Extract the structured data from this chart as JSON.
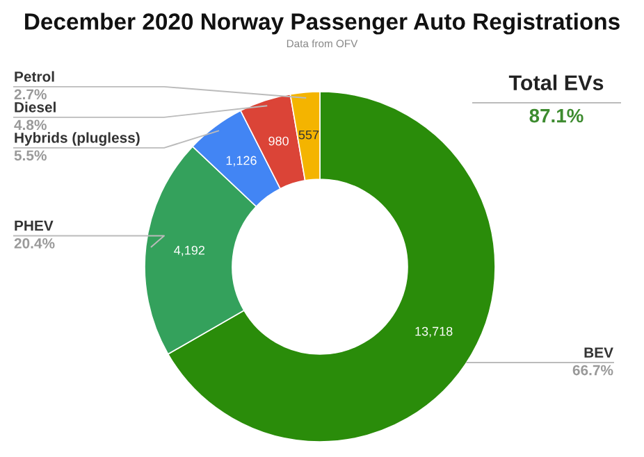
{
  "chart_data": {
    "type": "donut",
    "title": "December 2020 Norway Passenger Auto Registrations",
    "subtitle": "Data from OFV",
    "categories": [
      "BEV",
      "PHEV",
      "Hybrids (plugless)",
      "Diesel",
      "Petrol"
    ],
    "values": [
      13718,
      4192,
      1126,
      980,
      557
    ],
    "colors": [
      "#2a8c0a",
      "#34a15c",
      "#4285f4",
      "#db4437",
      "#f4b400"
    ],
    "value_labels": [
      "13,718",
      "4,192",
      "1,126",
      "980",
      "557"
    ],
    "annotations": [
      "Total EVs",
      "87.1%",
      {
        "text": "66.7%",
        "x": "BEV"
      },
      {
        "text": "20.4%",
        "x": "PHEV"
      },
      {
        "text": "5.5%",
        "x": "Hybrids (plugless)"
      },
      {
        "text": "4.8%",
        "x": "Diesel"
      },
      {
        "text": "2.7%",
        "x": "Petrol"
      }
    ],
    "legend": false
  }
}
